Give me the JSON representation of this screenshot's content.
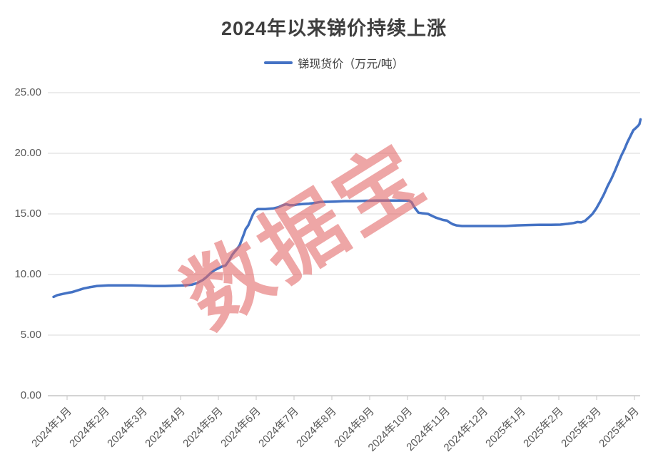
{
  "watermark": {
    "text": "数据宝",
    "color": "rgba(226,106,106,0.6)"
  },
  "chart_data": {
    "type": "line",
    "title": "2024年以来锑价持续上涨",
    "legend": [
      {
        "label": "锑现货价（万元/吨）",
        "color": "#4472C4"
      }
    ],
    "legend_position": "top",
    "grid": true,
    "ylabel": "",
    "xlabel": "",
    "ylim": [
      0,
      25
    ],
    "y_ticks": [
      {
        "value": 25,
        "label": "25.00"
      },
      {
        "value": 20,
        "label": "20.00"
      },
      {
        "value": 15,
        "label": "15.00"
      },
      {
        "value": 10,
        "label": "10.00"
      },
      {
        "value": 5,
        "label": "5.00"
      },
      {
        "value": 0,
        "label": "0.00"
      }
    ],
    "x_tick_labels": [
      "2024年1月",
      "2024年2月",
      "2024年3月",
      "2024年4月",
      "2024年5月",
      "2024年6月",
      "2024年7月",
      "2024年8月",
      "2024年9月",
      "2024年10月",
      "2024年11月",
      "2024年12月",
      "2025年1月",
      "2025年2月",
      "2025年3月",
      "2025年4月"
    ],
    "x_unit": "months since 2024-01-01 (fractional, read from axis)",
    "y_unit": "万元/吨",
    "series": [
      {
        "name": "锑现货价（万元/吨）",
        "color": "#4472C4",
        "points": [
          [
            0.15,
            8.15
          ],
          [
            0.25,
            8.3
          ],
          [
            0.4,
            8.4
          ],
          [
            0.55,
            8.5
          ],
          [
            0.65,
            8.55
          ],
          [
            0.8,
            8.7
          ],
          [
            0.95,
            8.85
          ],
          [
            1.1,
            8.95
          ],
          [
            1.3,
            9.05
          ],
          [
            1.6,
            9.1
          ],
          [
            1.9,
            9.1
          ],
          [
            2.2,
            9.1
          ],
          [
            2.5,
            9.08
          ],
          [
            2.8,
            9.05
          ],
          [
            3.1,
            9.05
          ],
          [
            3.4,
            9.08
          ],
          [
            3.6,
            9.1
          ],
          [
            3.8,
            9.15
          ],
          [
            3.95,
            9.3
          ],
          [
            4.1,
            9.55
          ],
          [
            4.2,
            9.8
          ],
          [
            4.3,
            10.1
          ],
          [
            4.4,
            10.35
          ],
          [
            4.5,
            10.5
          ],
          [
            4.6,
            10.65
          ],
          [
            4.7,
            10.75
          ],
          [
            4.8,
            11.2
          ],
          [
            4.87,
            11.6
          ],
          [
            4.93,
            11.85
          ],
          [
            5.0,
            12.1
          ],
          [
            5.07,
            12.4
          ],
          [
            5.13,
            12.9
          ],
          [
            5.18,
            13.3
          ],
          [
            5.23,
            13.75
          ],
          [
            5.3,
            14.05
          ],
          [
            5.36,
            14.5
          ],
          [
            5.42,
            14.95
          ],
          [
            5.48,
            15.25
          ],
          [
            5.55,
            15.4
          ],
          [
            5.75,
            15.4
          ],
          [
            5.95,
            15.45
          ],
          [
            6.1,
            15.55
          ],
          [
            6.2,
            15.7
          ],
          [
            6.3,
            15.8
          ],
          [
            6.4,
            15.72
          ],
          [
            6.5,
            15.72
          ],
          [
            6.6,
            15.78
          ],
          [
            6.75,
            15.82
          ],
          [
            6.9,
            15.85
          ],
          [
            7.05,
            15.9
          ],
          [
            7.2,
            15.98
          ],
          [
            7.4,
            16.0
          ],
          [
            7.6,
            16.02
          ],
          [
            7.85,
            16.05
          ],
          [
            8.1,
            16.05
          ],
          [
            8.4,
            16.08
          ],
          [
            8.7,
            16.1
          ],
          [
            9.0,
            16.1
          ],
          [
            9.3,
            16.1
          ],
          [
            9.55,
            16.1
          ],
          [
            9.62,
            15.95
          ],
          [
            9.68,
            15.6
          ],
          [
            9.74,
            15.35
          ],
          [
            9.8,
            15.1
          ],
          [
            9.9,
            15.05
          ],
          [
            10.05,
            15.0
          ],
          [
            10.15,
            14.85
          ],
          [
            10.25,
            14.7
          ],
          [
            10.35,
            14.6
          ],
          [
            10.45,
            14.5
          ],
          [
            10.55,
            14.45
          ],
          [
            10.62,
            14.3
          ],
          [
            10.7,
            14.15
          ],
          [
            10.8,
            14.05
          ],
          [
            10.95,
            14.0
          ],
          [
            11.2,
            14.0
          ],
          [
            11.5,
            14.0
          ],
          [
            11.8,
            14.0
          ],
          [
            12.1,
            14.0
          ],
          [
            12.4,
            14.05
          ],
          [
            12.7,
            14.08
          ],
          [
            13.0,
            14.1
          ],
          [
            13.3,
            14.1
          ],
          [
            13.55,
            14.12
          ],
          [
            13.75,
            14.18
          ],
          [
            13.9,
            14.25
          ],
          [
            14.0,
            14.33
          ],
          [
            14.1,
            14.3
          ],
          [
            14.2,
            14.42
          ],
          [
            14.3,
            14.7
          ],
          [
            14.4,
            15.0
          ],
          [
            14.5,
            15.45
          ],
          [
            14.6,
            16.0
          ],
          [
            14.7,
            16.6
          ],
          [
            14.8,
            17.3
          ],
          [
            14.9,
            17.9
          ],
          [
            15.0,
            18.6
          ],
          [
            15.08,
            19.2
          ],
          [
            15.16,
            19.8
          ],
          [
            15.24,
            20.3
          ],
          [
            15.32,
            20.9
          ],
          [
            15.4,
            21.4
          ],
          [
            15.48,
            21.9
          ],
          [
            15.55,
            22.1
          ],
          [
            15.6,
            22.25
          ],
          [
            15.64,
            22.4
          ],
          [
            15.67,
            22.8
          ]
        ]
      }
    ]
  }
}
